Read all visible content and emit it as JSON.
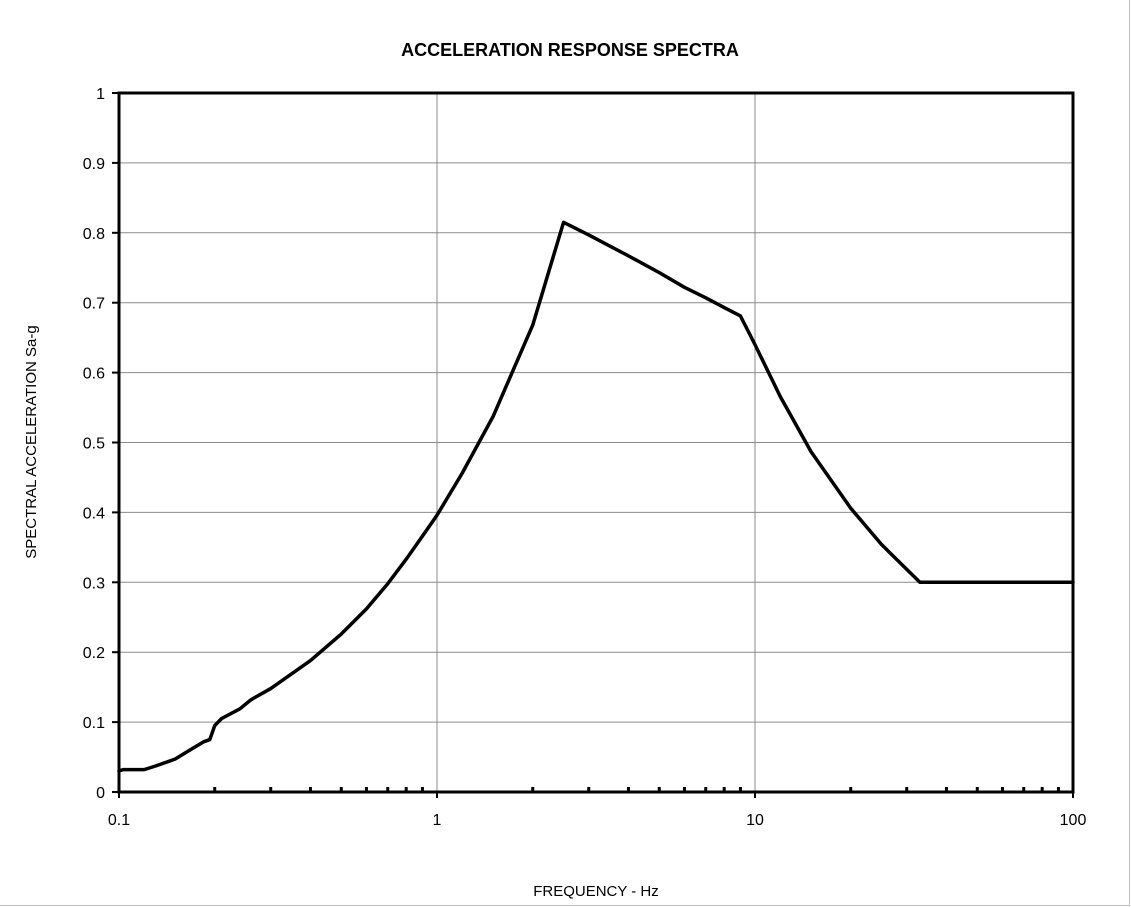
{
  "chart_data": {
    "type": "line",
    "title": "ACCELERATION RESPONSE SPECTRA",
    "xlabel": "FREQUENCY - Hz",
    "ylabel": "SPECTRAL ACCELERATION Sa-g",
    "x_scale": "log",
    "xlim": [
      0.1,
      100
    ],
    "ylim": [
      0,
      1
    ],
    "x_ticks": [
      "0.1",
      "1",
      "10",
      "100"
    ],
    "y_ticks": [
      "0",
      "0.1",
      "0.2",
      "0.3",
      "0.4",
      "0.5",
      "0.6",
      "0.7",
      "0.8",
      "0.9",
      "1"
    ],
    "grid": true,
    "legend": "none",
    "line_color": "#000000",
    "series": [
      {
        "x": [
          0.1,
          0.103,
          0.12,
          0.13,
          0.15,
          0.17,
          0.185,
          0.193,
          0.2,
          0.21,
          0.24,
          0.26,
          0.3,
          0.4,
          0.5,
          0.6,
          0.7,
          0.8,
          0.9,
          1.0,
          1.2,
          1.5,
          2.0,
          2.5,
          3.0,
          4.0,
          5.0,
          6.0,
          7.0,
          8.0,
          9.0,
          10.0,
          12.0,
          15.0,
          20.0,
          25.0,
          33.0,
          50.0,
          100.0
        ],
        "y": [
          0.03,
          0.032,
          0.032,
          0.037,
          0.047,
          0.062,
          0.072,
          0.075,
          0.095,
          0.105,
          0.119,
          0.132,
          0.148,
          0.188,
          0.226,
          0.262,
          0.298,
          0.333,
          0.366,
          0.396,
          0.456,
          0.537,
          0.668,
          0.815,
          0.797,
          0.767,
          0.743,
          0.722,
          0.707,
          0.693,
          0.681,
          0.64,
          0.566,
          0.487,
          0.406,
          0.354,
          0.3,
          0.3,
          0.3
        ]
      }
    ]
  }
}
